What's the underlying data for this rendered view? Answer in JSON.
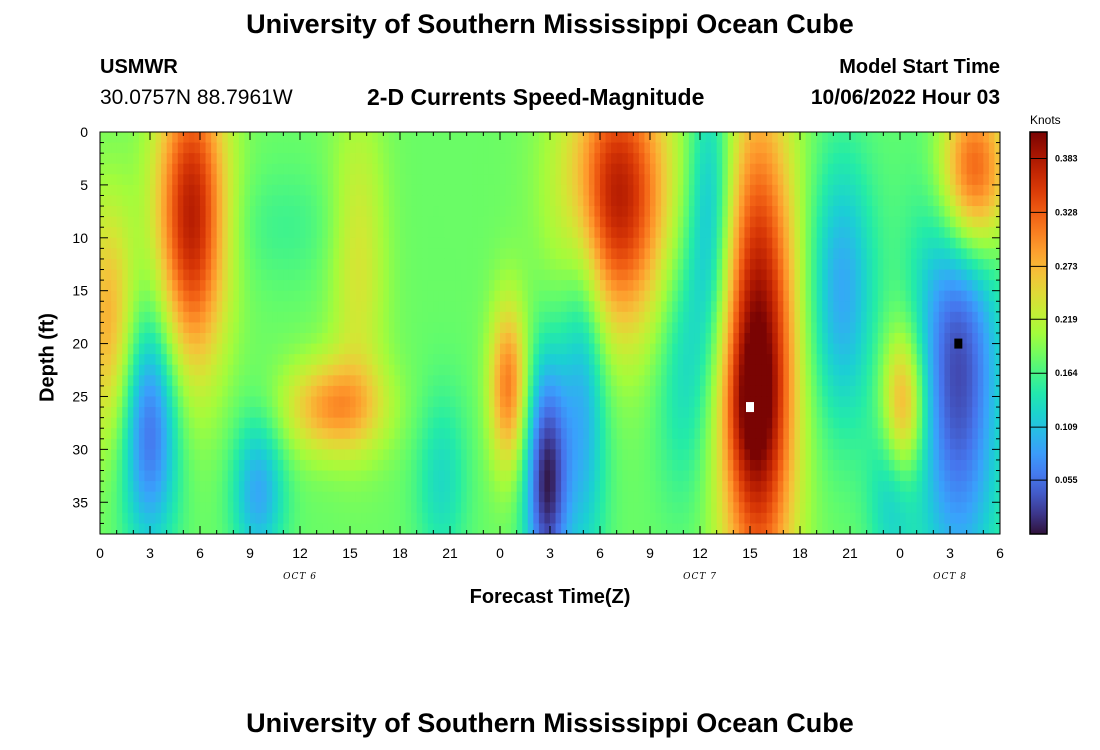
{
  "header": {
    "title": "University of Southern Mississippi Ocean Cube",
    "station": "USMWR",
    "coordinates": "30.0757N  88.7961W",
    "subtitle": "2-D Currents Speed-Magnitude",
    "start_label": "Model Start Time",
    "start_value": "10/06/2022 Hour 03"
  },
  "footer": {
    "title": "University of Southern Mississippi Ocean Cube"
  },
  "chart_data": {
    "type": "heatmap",
    "title": "2-D Currents Speed-Magnitude",
    "xlabel": "Forecast Time(Z)",
    "ylabel": "Depth (ft)",
    "x_range_hours": [
      0,
      54
    ],
    "y_range_ft": [
      0,
      38
    ],
    "y_inverted": true,
    "x_tick_labels": [
      "0",
      "3",
      "6",
      "9",
      "12",
      "15",
      "18",
      "21",
      "0",
      "3",
      "6",
      "9",
      "12",
      "15",
      "18",
      "21",
      "0",
      "3",
      "6"
    ],
    "y_ticks": [
      0,
      5,
      10,
      15,
      20,
      25,
      30,
      35
    ],
    "date_labels": [
      {
        "text": "OCT 6",
        "hour": 12
      },
      {
        "text": "OCT 7",
        "hour": 36
      },
      {
        "text": "OCT 8",
        "hour": 51
      }
    ],
    "colorbar": {
      "unit": "Knots",
      "min": 0.0,
      "max": 0.41,
      "tick_values": [
        0.055,
        0.109,
        0.164,
        0.219,
        0.273,
        0.328,
        0.383
      ],
      "tick_labels": [
        "0.055",
        "0.109",
        "0.164",
        "0.219",
        "0.273",
        "0.328",
        "0.383"
      ],
      "colormap": "turbo"
    },
    "markers": [
      {
        "hour": 39,
        "depth": 26,
        "color": "#ffffff"
      },
      {
        "hour": 51.5,
        "depth": 20,
        "color": "#000000"
      }
    ]
  }
}
